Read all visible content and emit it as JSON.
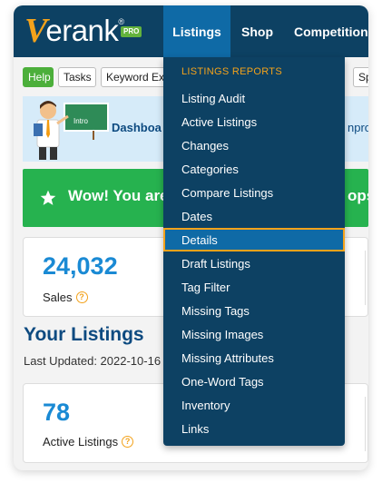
{
  "brand": {
    "logo_v": "V",
    "logo_text": "erank",
    "logo_reg": "®",
    "logo_badge": "PRO"
  },
  "nav": {
    "items": [
      {
        "label": "Listings",
        "active": true
      },
      {
        "label": "Shop",
        "active": false
      },
      {
        "label": "Competition",
        "active": false
      }
    ]
  },
  "toolbar": {
    "chips": [
      "Help",
      "Tasks",
      "Keyword Exp",
      "Sp"
    ]
  },
  "intro_banner": {
    "badge": "Intro",
    "title": "Dashboa",
    "right_text": "nprov"
  },
  "alert_banner": {
    "text": "Wow! You are",
    "right_text": "ops"
  },
  "sales_card": {
    "value": "24,032",
    "label": "Sales"
  },
  "your_listings": {
    "title": "Your Listings",
    "last_updated": "Last Updated: 2022-10-16"
  },
  "active_card": {
    "value": "78",
    "label": "Active Listings"
  },
  "dropdown": {
    "header": "LISTINGS REPORTS",
    "items": [
      "Listing Audit",
      "Active Listings",
      "Changes",
      "Categories",
      "Compare Listings",
      "Dates",
      "Details",
      "Draft Listings",
      "Tag Filter",
      "Missing Tags",
      "Missing Images",
      "Missing Attributes",
      "One-Word Tags",
      "Inventory",
      "Links"
    ],
    "selected": "Details"
  },
  "colors": {
    "navbar": "#0d4163",
    "nav_active": "#0f6aa6",
    "accent_orange": "#f3a21b",
    "stat_blue": "#1a8ad4",
    "alert_green": "#26b24f",
    "help_green": "#4caf3b"
  }
}
